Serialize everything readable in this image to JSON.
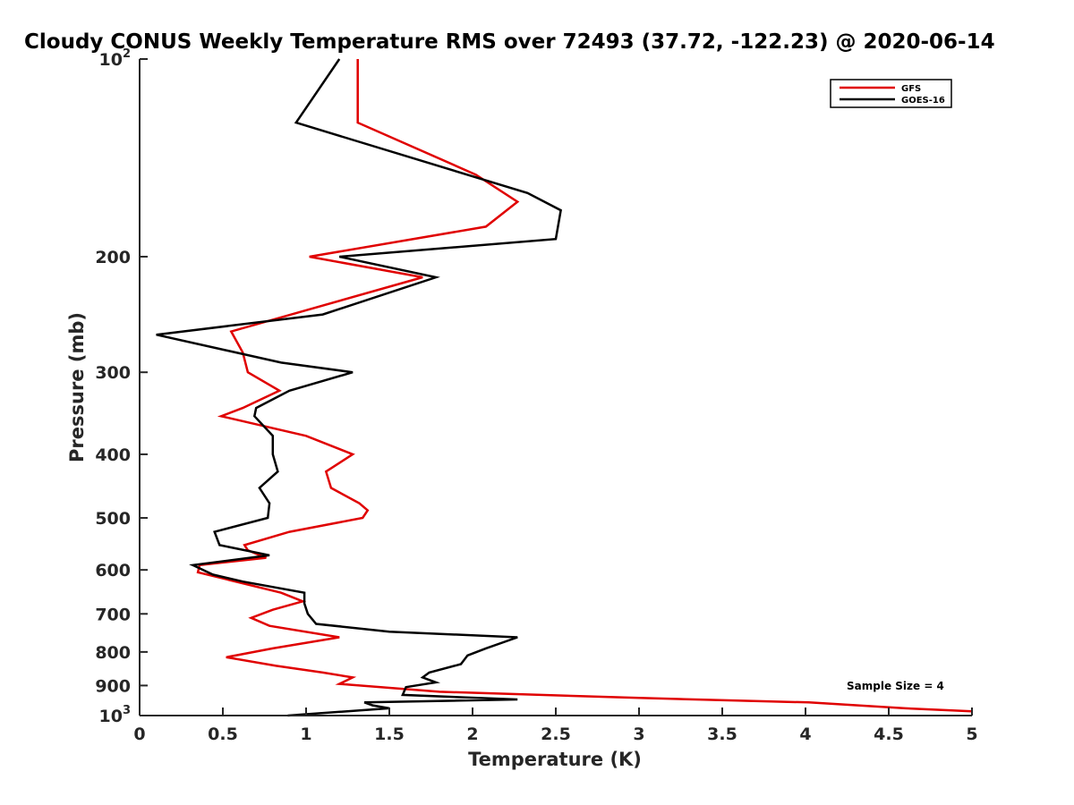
{
  "chart_data": {
    "type": "line",
    "title": "Cloudy CONUS Weekly Temperature RMS over 72493 (37.72, -122.23) @ 2020-06-14",
    "xlabel": "Temperature (K)",
    "ylabel": "Pressure (mb)",
    "xlim": [
      0,
      5
    ],
    "ylim": [
      100,
      1000
    ],
    "y_scale": "log",
    "y_reversed": true,
    "x_ticks": [
      0,
      0.5,
      1,
      1.5,
      2,
      2.5,
      3,
      3.5,
      4,
      4.5,
      5
    ],
    "x_tick_labels": [
      "0",
      "0.5",
      "1",
      "1.5",
      "2",
      "2.5",
      "3",
      "3.5",
      "4",
      "4.5",
      "5"
    ],
    "y_ticks": [
      100,
      200,
      300,
      400,
      500,
      600,
      700,
      800,
      900,
      1000
    ],
    "y_tick_labels": [
      "10^2",
      "200",
      "300",
      "400",
      "500",
      "600",
      "700",
      "800",
      "900",
      "10^3"
    ],
    "grid": false,
    "legend_position": "top-right",
    "annotation": "Sample Size = 4",
    "series": [
      {
        "name": "GFS",
        "color": "#e00000",
        "points": [
          [
            1.31,
            100
          ],
          [
            1.31,
            125
          ],
          [
            2.02,
            150
          ],
          [
            2.27,
            165
          ],
          [
            2.08,
            180
          ],
          [
            1.02,
            200
          ],
          [
            1.7,
            215
          ],
          [
            0.55,
            260
          ],
          [
            0.62,
            280
          ],
          [
            0.65,
            300
          ],
          [
            0.84,
            320
          ],
          [
            0.62,
            340
          ],
          [
            0.49,
            350
          ],
          [
            1.0,
            375
          ],
          [
            1.28,
            400
          ],
          [
            1.12,
            425
          ],
          [
            1.15,
            450
          ],
          [
            1.32,
            475
          ],
          [
            1.37,
            487
          ],
          [
            1.34,
            500
          ],
          [
            0.9,
            525
          ],
          [
            0.63,
            550
          ],
          [
            0.65,
            560
          ],
          [
            0.76,
            575
          ],
          [
            0.36,
            590
          ],
          [
            0.35,
            605
          ],
          [
            0.85,
            650
          ],
          [
            0.98,
            670
          ],
          [
            0.8,
            690
          ],
          [
            0.67,
            710
          ],
          [
            0.78,
            730
          ],
          [
            1.2,
            760
          ],
          [
            0.8,
            790
          ],
          [
            0.52,
            815
          ],
          [
            0.82,
            840
          ],
          [
            1.1,
            860
          ],
          [
            1.28,
            875
          ],
          [
            1.2,
            895
          ],
          [
            1.8,
            920
          ],
          [
            3.0,
            940
          ],
          [
            4.02,
            955
          ],
          [
            4.6,
            975
          ],
          [
            5.0,
            985
          ]
        ]
      },
      {
        "name": "GOES-16",
        "color": "#000000",
        "points": [
          [
            1.2,
            100
          ],
          [
            0.94,
            125
          ],
          [
            2.33,
            160
          ],
          [
            2.53,
            170
          ],
          [
            2.5,
            188
          ],
          [
            1.2,
            200
          ],
          [
            1.78,
            215
          ],
          [
            1.1,
            245
          ],
          [
            0.1,
            263
          ],
          [
            0.85,
            290
          ],
          [
            1.28,
            300
          ],
          [
            0.9,
            320
          ],
          [
            0.7,
            340
          ],
          [
            0.69,
            350
          ],
          [
            0.8,
            375
          ],
          [
            0.8,
            400
          ],
          [
            0.83,
            425
          ],
          [
            0.72,
            450
          ],
          [
            0.78,
            475
          ],
          [
            0.77,
            500
          ],
          [
            0.45,
            525
          ],
          [
            0.48,
            550
          ],
          [
            0.78,
            570
          ],
          [
            0.32,
            590
          ],
          [
            0.44,
            610
          ],
          [
            0.62,
            625
          ],
          [
            0.99,
            650
          ],
          [
            0.99,
            675
          ],
          [
            1.01,
            700
          ],
          [
            1.06,
            725
          ],
          [
            1.5,
            745
          ],
          [
            2.27,
            760
          ],
          [
            2.08,
            790
          ],
          [
            1.97,
            810
          ],
          [
            1.93,
            835
          ],
          [
            1.74,
            860
          ],
          [
            1.7,
            875
          ],
          [
            1.78,
            890
          ],
          [
            1.6,
            905
          ],
          [
            1.58,
            930
          ],
          [
            2.27,
            945
          ],
          [
            1.35,
            955
          ],
          [
            1.4,
            965
          ],
          [
            1.5,
            975
          ],
          [
            0.89,
            1000
          ]
        ]
      }
    ]
  }
}
